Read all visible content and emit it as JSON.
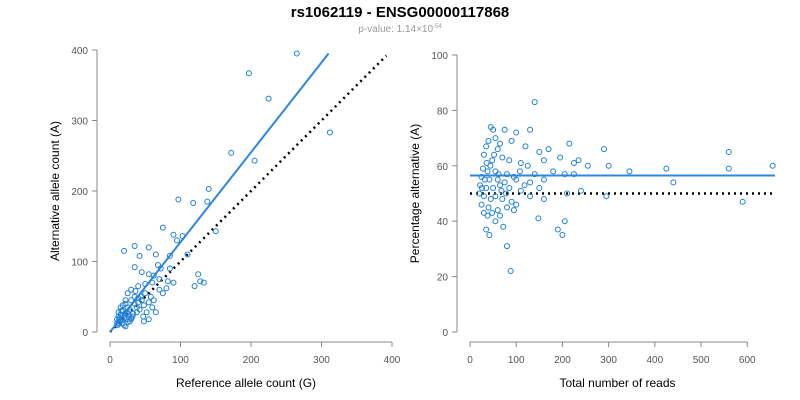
{
  "title": "rs1062119 - ENSG00000117868",
  "subtitle": {
    "prefix": "p-value: 1.14×10",
    "exponent": "-54"
  },
  "colors": {
    "points": "#1f7fd6",
    "fit_line": "#2e86de",
    "reference_line": "#000000",
    "axis": "#888888"
  },
  "chart_data": [
    {
      "type": "scatter",
      "xlabel": "Reference allele count (G)",
      "ylabel": "Alternative allele count (A)",
      "xlim": [
        0,
        400
      ],
      "ylim": [
        0,
        400
      ],
      "xticks": [
        0,
        100,
        200,
        300,
        400
      ],
      "yticks": [
        0,
        100,
        200,
        300,
        400
      ],
      "fit_line": {
        "x": [
          0,
          310
        ],
        "y": [
          0,
          395
        ]
      },
      "reference_line": {
        "x": [
          0,
          392
        ],
        "y": [
          0,
          392
        ]
      },
      "points": [
        [
          265,
          395
        ],
        [
          197,
          367
        ],
        [
          225,
          331
        ],
        [
          312,
          283
        ],
        [
          172,
          254
        ],
        [
          205,
          243
        ],
        [
          140,
          203
        ],
        [
          118,
          183
        ],
        [
          138,
          185
        ],
        [
          97,
          188
        ],
        [
          75,
          148
        ],
        [
          103,
          136
        ],
        [
          90,
          138
        ],
        [
          95,
          130
        ],
        [
          150,
          143
        ],
        [
          20,
          115
        ],
        [
          35,
          122
        ],
        [
          55,
          120
        ],
        [
          42,
          108
        ],
        [
          65,
          110
        ],
        [
          85,
          108
        ],
        [
          110,
          110
        ],
        [
          68,
          95
        ],
        [
          72,
          90
        ],
        [
          35,
          92
        ],
        [
          45,
          85
        ],
        [
          55,
          82
        ],
        [
          62,
          80
        ],
        [
          70,
          75
        ],
        [
          82,
          72
        ],
        [
          90,
          70
        ],
        [
          125,
          82
        ],
        [
          128,
          72
        ],
        [
          133,
          70
        ],
        [
          120,
          65
        ],
        [
          60,
          70
        ],
        [
          50,
          68
        ],
        [
          40,
          65
        ],
        [
          30,
          60
        ],
        [
          25,
          55
        ],
        [
          35,
          50
        ],
        [
          40,
          48
        ],
        [
          45,
          45
        ],
        [
          50,
          55
        ],
        [
          55,
          42
        ],
        [
          58,
          50
        ],
        [
          30,
          45
        ],
        [
          22,
          40
        ],
        [
          25,
          35
        ],
        [
          28,
          32
        ],
        [
          18,
          30
        ],
        [
          15,
          25
        ],
        [
          12,
          22
        ],
        [
          10,
          18
        ],
        [
          14,
          15
        ],
        [
          18,
          12
        ],
        [
          20,
          10
        ],
        [
          22,
          8
        ],
        [
          25,
          14
        ],
        [
          30,
          18
        ],
        [
          32,
          22
        ],
        [
          38,
          28
        ],
        [
          42,
          32
        ],
        [
          48,
          38
        ],
        [
          20,
          20
        ],
        [
          16,
          18
        ],
        [
          13,
          12
        ],
        [
          11,
          10
        ],
        [
          12,
          28
        ],
        [
          15,
          35
        ],
        [
          26,
          25
        ],
        [
          24,
          28
        ],
        [
          35,
          40
        ],
        [
          28,
          15
        ],
        [
          30,
          20
        ],
        [
          47,
          22
        ],
        [
          52,
          28
        ],
        [
          55,
          18
        ],
        [
          48,
          15
        ],
        [
          60,
          35
        ],
        [
          65,
          28
        ],
        [
          70,
          60
        ],
        [
          62,
          45
        ],
        [
          75,
          55
        ],
        [
          80,
          62
        ],
        [
          85,
          90
        ],
        [
          22,
          45
        ],
        [
          18,
          38
        ],
        [
          16,
          30
        ],
        [
          14,
          20
        ],
        [
          10,
          12
        ],
        [
          12,
          15
        ],
        [
          36,
          58
        ],
        [
          40,
          42
        ],
        [
          44,
          50
        ],
        [
          24,
          18
        ],
        [
          27,
          22
        ],
        [
          33,
          26
        ],
        [
          38,
          35
        ],
        [
          21,
          25
        ]
      ]
    },
    {
      "type": "scatter",
      "xlabel": "Total number of reads",
      "ylabel": "Percentage alternative (A)",
      "xlim": [
        0,
        660
      ],
      "ylim": [
        0,
        100
      ],
      "xticks": [
        0,
        100,
        200,
        300,
        400,
        500,
        600
      ],
      "yticks": [
        0,
        20,
        40,
        60,
        80,
        100
      ],
      "fit_line": {
        "x": [
          0,
          660
        ],
        "y": [
          56.5,
          56.5
        ]
      },
      "reference_line": {
        "x": [
          0,
          660
        ],
        "y": [
          50,
          50
        ]
      },
      "points": [
        [
          140,
          83
        ],
        [
          45,
          74
        ],
        [
          50,
          73
        ],
        [
          55,
          70
        ],
        [
          75,
          73
        ],
        [
          100,
          72
        ],
        [
          130,
          73
        ],
        [
          40,
          69
        ],
        [
          35,
          67
        ],
        [
          60,
          66
        ],
        [
          65,
          68
        ],
        [
          90,
          69
        ],
        [
          120,
          67
        ],
        [
          150,
          65
        ],
        [
          170,
          66
        ],
        [
          195,
          63
        ],
        [
          215,
          68
        ],
        [
          290,
          66
        ],
        [
          560,
          65
        ],
        [
          30,
          64
        ],
        [
          48,
          62
        ],
        [
          70,
          63
        ],
        [
          85,
          62
        ],
        [
          110,
          61
        ],
        [
          125,
          60
        ],
        [
          160,
          62
        ],
        [
          225,
          61
        ],
        [
          255,
          60
        ],
        [
          235,
          62
        ],
        [
          300,
          60
        ],
        [
          345,
          58
        ],
        [
          425,
          59
        ],
        [
          560,
          59
        ],
        [
          655,
          60
        ],
        [
          28,
          59
        ],
        [
          38,
          58
        ],
        [
          55,
          58
        ],
        [
          80,
          57
        ],
        [
          95,
          56
        ],
        [
          140,
          57
        ],
        [
          180,
          58
        ],
        [
          205,
          57
        ],
        [
          225,
          57
        ],
        [
          25,
          56
        ],
        [
          42,
          55
        ],
        [
          60,
          55
        ],
        [
          75,
          54
        ],
        [
          100,
          55
        ],
        [
          130,
          54
        ],
        [
          160,
          55
        ],
        [
          440,
          54
        ],
        [
          22,
          53
        ],
        [
          35,
          52
        ],
        [
          50,
          52
        ],
        [
          65,
          53
        ],
        [
          85,
          52
        ],
        [
          110,
          51
        ],
        [
          150,
          52
        ],
        [
          210,
          50
        ],
        [
          240,
          51
        ],
        [
          20,
          50
        ],
        [
          30,
          49
        ],
        [
          45,
          48
        ],
        [
          55,
          49
        ],
        [
          70,
          48
        ],
        [
          90,
          47
        ],
        [
          100,
          46
        ],
        [
          130,
          49
        ],
        [
          160,
          48
        ],
        [
          295,
          49
        ],
        [
          590,
          47
        ],
        [
          25,
          46
        ],
        [
          40,
          45
        ],
        [
          60,
          44
        ],
        [
          80,
          45
        ],
        [
          95,
          44
        ],
        [
          30,
          43
        ],
        [
          38,
          42
        ],
        [
          48,
          43
        ],
        [
          65,
          42
        ],
        [
          148,
          41
        ],
        [
          205,
          40
        ],
        [
          190,
          37
        ],
        [
          200,
          35
        ],
        [
          35,
          37
        ],
        [
          42,
          35
        ],
        [
          72,
          38
        ],
        [
          55,
          40
        ],
        [
          80,
          31
        ],
        [
          88,
          22
        ],
        [
          26,
          52
        ],
        [
          32,
          55
        ],
        [
          44,
          60
        ],
        [
          52,
          64
        ],
        [
          36,
          61
        ],
        [
          62,
          57
        ],
        [
          78,
          50
        ],
        [
          108,
          58
        ],
        [
          118,
          53
        ],
        [
          68,
          51
        ]
      ]
    }
  ]
}
